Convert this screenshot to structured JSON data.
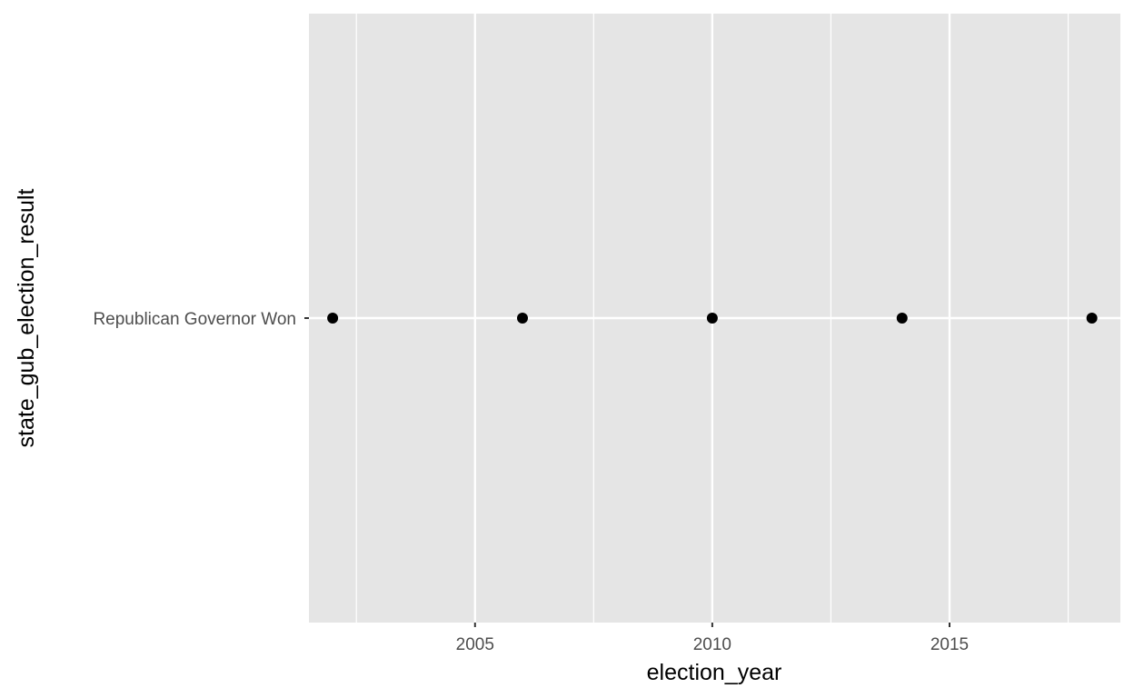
{
  "chart_data": {
    "type": "scatter",
    "xlabel": "election_year",
    "ylabel": "state_gub_election_result",
    "xlim": [
      2001.5,
      2018.6
    ],
    "x_ticks": [
      "2005",
      "2010",
      "2015"
    ],
    "x_tick_values": [
      2005,
      2010,
      2015
    ],
    "x_minor_tick_values": [
      2002.5,
      2007.5,
      2012.5,
      2017.5
    ],
    "y_categories": [
      "Republican Governor Won"
    ],
    "grid": true,
    "panel_color": "#e5e5e5",
    "grid_color": "#ffffff",
    "point_color": "#000000",
    "points": [
      {
        "x": 2002,
        "y": "Republican Governor Won"
      },
      {
        "x": 2006,
        "y": "Republican Governor Won"
      },
      {
        "x": 2010,
        "y": "Republican Governor Won"
      },
      {
        "x": 2014,
        "y": "Republican Governor Won"
      },
      {
        "x": 2018,
        "y": "Republican Governor Won"
      }
    ]
  }
}
